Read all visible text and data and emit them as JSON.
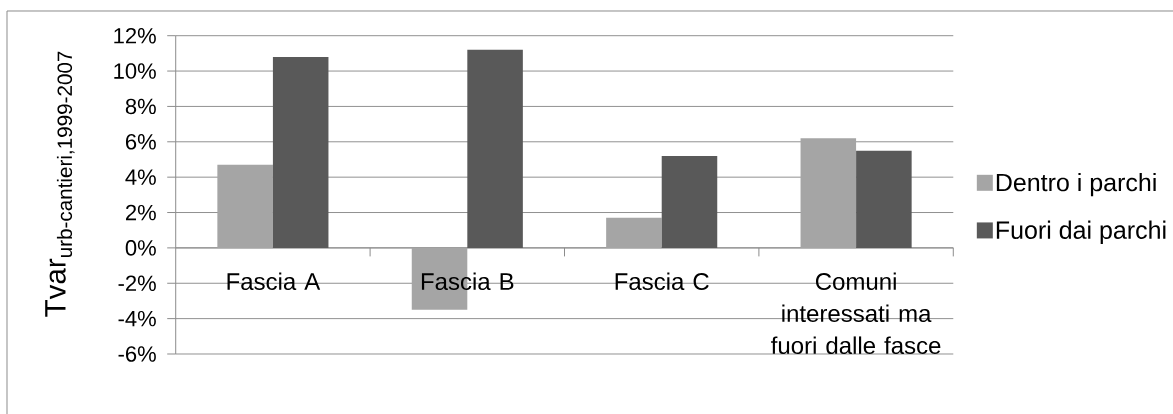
{
  "chart_data": {
    "type": "bar",
    "ylabel": "\\text{Tvar}_{\\text{urb-cantieri,1999-2007}}",
    "categories": [
      "Fascia A",
      "Fascia B",
      "Fascia C",
      "Comuni interessati ma fuori dalle fasce"
    ],
    "series": [
      {
        "name": "Dentro i parchi",
        "color": "#a5a5a5",
        "values": [
          4.7,
          -3.5,
          1.7,
          6.2
        ]
      },
      {
        "name": "Fuori dai parchi",
        "color": "#595959",
        "values": [
          10.8,
          11.2,
          5.2,
          5.5
        ]
      }
    ],
    "ylim": [
      -6,
      12
    ],
    "yticks": [
      {
        "value": 12,
        "label": "12%"
      },
      {
        "value": 10,
        "label": "10%"
      },
      {
        "value": 8,
        "label": "8%"
      },
      {
        "value": 6,
        "label": "6%"
      },
      {
        "value": 4,
        "label": "4%"
      },
      {
        "value": 2,
        "label": "2%"
      },
      {
        "value": 0,
        "label": "0%"
      },
      {
        "value": -2,
        "label": "-2%"
      },
      {
        "value": -4,
        "label": "-4%"
      },
      {
        "value": -6,
        "label": "-6%"
      }
    ],
    "grid": "y",
    "legend": "right"
  }
}
